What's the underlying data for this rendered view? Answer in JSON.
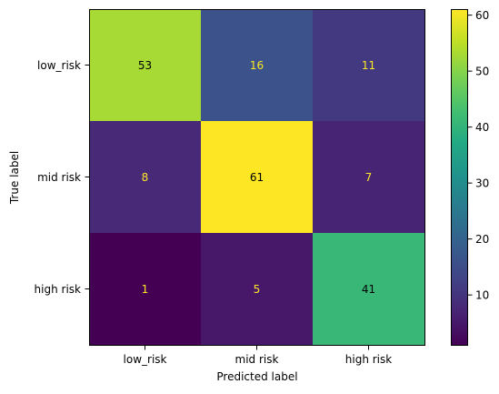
{
  "chart_data": {
    "type": "heatmap",
    "title": "",
    "xlabel": "Predicted label",
    "ylabel": "True label",
    "x_categories": [
      "low_risk",
      "mid risk",
      "high risk"
    ],
    "y_categories": [
      "low_risk",
      "mid risk",
      "high risk"
    ],
    "values": [
      [
        53,
        16,
        11
      ],
      [
        8,
        61,
        7
      ],
      [
        1,
        5,
        41
      ]
    ],
    "colormap": "viridis",
    "colorbar": {
      "range": [
        1,
        61
      ],
      "ticks": [
        10,
        20,
        30,
        40,
        50,
        60
      ]
    },
    "text_colors": {
      "on_dark": "#fde725",
      "on_light": "#000000"
    },
    "grid": false
  }
}
